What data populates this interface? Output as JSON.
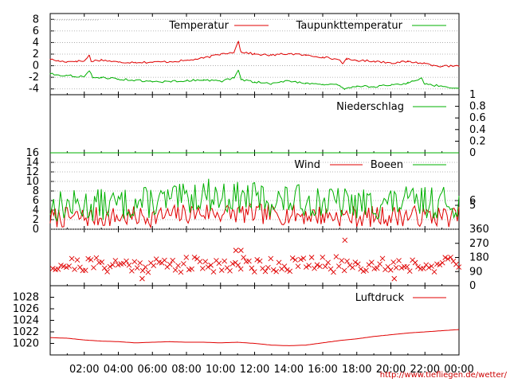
{
  "source_text": "http://www.tiefliegen.de/wetter/",
  "colors": {
    "red": "#e00000",
    "green": "#00b000",
    "grid": "#a0a0a0",
    "axis": "#000000"
  },
  "chart_data": [
    {
      "type": "line",
      "panel": "temperature",
      "ylim": [
        -5,
        9
      ],
      "yticks_left": [
        -4,
        -2,
        0,
        2,
        4,
        6,
        8
      ],
      "grid": true,
      "legend_position": "top-right",
      "series": [
        {
          "name": "Temperatur",
          "color": "#e00000",
          "points": [
            [
              0,
              1.1
            ],
            [
              0.5,
              0.8
            ],
            [
              1,
              0.7
            ],
            [
              1.5,
              0.8
            ],
            [
              2,
              0.8
            ],
            [
              2.3,
              1.8
            ],
            [
              2.4,
              0.8
            ],
            [
              3,
              1.0
            ],
            [
              4,
              0.6
            ],
            [
              5,
              0.6
            ],
            [
              6,
              0.6
            ],
            [
              7,
              0.7
            ],
            [
              8,
              0.9
            ],
            [
              9,
              1.3
            ],
            [
              10,
              2.0
            ],
            [
              10.8,
              2.4
            ],
            [
              11.05,
              4.2
            ],
            [
              11.2,
              2.4
            ],
            [
              12,
              2.0
            ],
            [
              13,
              1.8
            ],
            [
              14,
              2.1
            ],
            [
              15,
              1.8
            ],
            [
              16,
              1.5
            ],
            [
              17,
              1.0
            ],
            [
              17.2,
              0.4
            ],
            [
              17.4,
              1.1
            ],
            [
              18,
              0.9
            ],
            [
              19,
              0.8
            ],
            [
              20,
              0.5
            ],
            [
              21,
              0.7
            ],
            [
              22,
              0.4
            ],
            [
              22.5,
              0.1
            ],
            [
              23,
              -0.1
            ],
            [
              24,
              -0.1
            ]
          ]
        },
        {
          "name": "Taupunkttemperatur",
          "color": "#00b000",
          "points": [
            [
              0,
              -1.4
            ],
            [
              1,
              -1.7
            ],
            [
              2,
              -1.9
            ],
            [
              2.3,
              -0.9
            ],
            [
              2.5,
              -2.1
            ],
            [
              3,
              -2.0
            ],
            [
              4,
              -2.3
            ],
            [
              5,
              -2.5
            ],
            [
              6,
              -2.8
            ],
            [
              7,
              -2.7
            ],
            [
              8,
              -2.6
            ],
            [
              9,
              -2.4
            ],
            [
              10,
              -2.7
            ],
            [
              10.8,
              -2.1
            ],
            [
              11.05,
              -0.8
            ],
            [
              11.2,
              -2.4
            ],
            [
              12,
              -2.8
            ],
            [
              13,
              -3.1
            ],
            [
              14,
              -2.6
            ],
            [
              15,
              -3.0
            ],
            [
              16,
              -3.2
            ],
            [
              17,
              -3.4
            ],
            [
              17.3,
              -4.0
            ],
            [
              18,
              -3.5
            ],
            [
              19,
              -3.6
            ],
            [
              20,
              -3.4
            ],
            [
              21,
              -3.0
            ],
            [
              21.8,
              -2.1
            ],
            [
              22,
              -3.2
            ],
            [
              23,
              -3.5
            ],
            [
              24,
              -3.9
            ]
          ]
        }
      ]
    },
    {
      "type": "line",
      "panel": "precipitation",
      "ylim": [
        0,
        1
      ],
      "yticks_right": [
        0,
        0.2,
        0.4,
        0.6,
        0.8,
        1
      ],
      "legend_position": "top-right",
      "series": [
        {
          "name": "Niederschlag",
          "color": "#00b000",
          "points": [
            [
              0,
              0
            ],
            [
              24,
              0
            ]
          ]
        }
      ]
    },
    {
      "type": "line",
      "panel": "wind",
      "ylim": [
        0,
        16
      ],
      "yticks_left": [
        0,
        2,
        4,
        6,
        8,
        10,
        12,
        14,
        16
      ],
      "yticks_right": [
        5,
        6
      ],
      "grid": true,
      "legend_position": "top-right",
      "series": [
        {
          "name": "Wind",
          "color": "#e00000",
          "base": 2.6,
          "amp": 2.2,
          "seed": 7,
          "trend": [
            [
              0,
              2.4
            ],
            [
              6,
              2.6
            ],
            [
              9,
              3.5
            ],
            [
              12,
              3.2
            ],
            [
              15,
              3.0
            ],
            [
              18,
              2.6
            ],
            [
              21,
              2.8
            ],
            [
              24,
              2.6
            ]
          ]
        },
        {
          "name": "Boeen",
          "color": "#00b000",
          "base": 5.8,
          "amp": 3.4,
          "seed": 13,
          "trend": [
            [
              0,
              4.8
            ],
            [
              4,
              5.2
            ],
            [
              8,
              6.2
            ],
            [
              9,
              7.6
            ],
            [
              10,
              6.6
            ],
            [
              12,
              6.6
            ],
            [
              13,
              6.0
            ],
            [
              15,
              6.0
            ],
            [
              18,
              5.2
            ],
            [
              21,
              5.6
            ],
            [
              24,
              5.6
            ]
          ]
        }
      ]
    },
    {
      "type": "scatter",
      "panel": "wind-direction",
      "ylim": [
        0,
        360
      ],
      "yticks_right": [
        0,
        90,
        180,
        270,
        360
      ],
      "marker": "x",
      "series": [
        {
          "name": "",
          "color": "#e00000",
          "center": 135,
          "spread": 50,
          "seed": 21,
          "outliers": [
            [
              10.9,
              225
            ],
            [
              11.2,
              225
            ],
            [
              17.3,
              290
            ],
            [
              20.2,
              45
            ],
            [
              5.4,
              45
            ]
          ]
        }
      ]
    },
    {
      "type": "line",
      "panel": "pressure",
      "ylim": [
        1018,
        1030
      ],
      "yticks_left": [
        1020,
        1022,
        1024,
        1026,
        1028
      ],
      "legend_position": "top-right",
      "series": [
        {
          "name": "Luftdruck",
          "color": "#e00000",
          "points": [
            [
              0,
              1021.0
            ],
            [
              1,
              1020.9
            ],
            [
              2,
              1020.6
            ],
            [
              3,
              1020.4
            ],
            [
              4,
              1020.3
            ],
            [
              5,
              1020.1
            ],
            [
              6,
              1020.2
            ],
            [
              7,
              1020.3
            ],
            [
              8,
              1020.2
            ],
            [
              9,
              1020.2
            ],
            [
              10,
              1020.1
            ],
            [
              11,
              1020.2
            ],
            [
              12,
              1020.0
            ],
            [
              13,
              1019.7
            ],
            [
              14,
              1019.6
            ],
            [
              15,
              1019.7
            ],
            [
              16,
              1020.1
            ],
            [
              17,
              1020.5
            ],
            [
              18,
              1020.8
            ],
            [
              19,
              1021.2
            ],
            [
              20,
              1021.5
            ],
            [
              21,
              1021.8
            ],
            [
              22,
              1022.0
            ],
            [
              23,
              1022.2
            ],
            [
              24,
              1022.4
            ]
          ]
        }
      ]
    }
  ],
  "x_axis": {
    "xlim": [
      0,
      24
    ],
    "tick_labels": [
      "02:00",
      "04:00",
      "06:00",
      "08:00",
      "10:00",
      "12:00",
      "14:00",
      "16:00",
      "18:00",
      "20:00",
      "22:00",
      "00:00"
    ],
    "tick_values": [
      2,
      4,
      6,
      8,
      10,
      12,
      14,
      16,
      18,
      20,
      22,
      24
    ]
  }
}
